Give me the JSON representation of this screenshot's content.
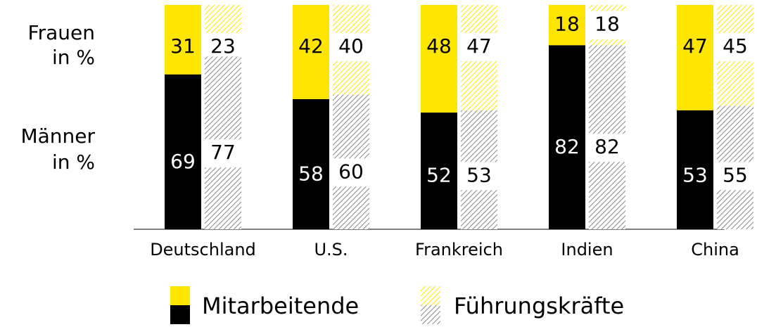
{
  "chart_data": {
    "type": "stacked_bar",
    "categories": [
      "Deutschland",
      "U.S.",
      "Frankreich",
      "Indien",
      "China"
    ],
    "segment_labels": [
      {
        "title": "Frauen",
        "unit": "in %",
        "color": "#ffe600"
      },
      {
        "title": "Männer",
        "unit": "in %",
        "color": "#000000"
      }
    ],
    "series": [
      {
        "name": "Mitarbeitende",
        "pattern": "solid",
        "values": [
          [
            31,
            69
          ],
          [
            42,
            58
          ],
          [
            48,
            52
          ],
          [
            18,
            82
          ],
          [
            47,
            53
          ]
        ]
      },
      {
        "name": "Führungskräfte",
        "pattern": "hatched",
        "values": [
          [
            23,
            77
          ],
          [
            40,
            60
          ],
          [
            47,
            53
          ],
          [
            18,
            82
          ],
          [
            45,
            55
          ]
        ]
      }
    ]
  }
}
